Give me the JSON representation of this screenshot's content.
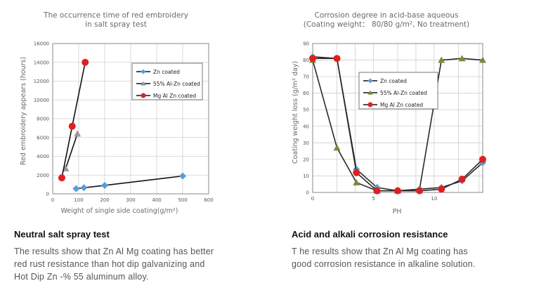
{
  "chart_data": [
    {
      "type": "line",
      "title_lines": [
        "The occurrence time of red embroidery",
        "in salt spray test"
      ],
      "xlabel": "Weight of single side coating(g/m²)",
      "ylabel": "Red embroidery appears (hours)",
      "xlim": [
        0,
        600
      ],
      "ylim": [
        0,
        16000
      ],
      "x_ticks": [
        "0",
        "100",
        "200",
        "300",
        "400",
        "500",
        "600"
      ],
      "y_ticks": [
        "0",
        "2000",
        "4000",
        "6000",
        "8000",
        "10000",
        "12000",
        "14000",
        "16000"
      ],
      "grid": true,
      "legend_position": "top-right",
      "series": [
        {
          "name": "Zn coated",
          "color": "#5b9bd5",
          "marker": "diamond",
          "x": [
            90,
            120,
            200,
            500
          ],
          "y": [
            550,
            650,
            900,
            1900
          ]
        },
        {
          "name": "55% Al-Zn coated",
          "color": "#999999",
          "marker": "triangle",
          "x": [
            50,
            95
          ],
          "y": [
            2700,
            6400
          ]
        },
        {
          "name": "Mg Al Zn coated",
          "color": "#e02020",
          "marker": "circle",
          "x": [
            35,
            75,
            125
          ],
          "y": [
            1700,
            7200,
            14000
          ]
        }
      ]
    },
    {
      "type": "line",
      "title_lines": [
        "Corrosion degree in acid-base aqueous",
        "(Coating weight： 80/80 g/m²,  No treatment)"
      ],
      "xlabel": "PH",
      "ylabel": "Coating weight loss (g/m² day)",
      "xlim": [
        0,
        14
      ],
      "ylim": [
        0,
        90
      ],
      "x_ticks": [
        "0",
        "5",
        "10"
      ],
      "y_ticks": [
        "0",
        "10",
        "20",
        "30",
        "40",
        "50",
        "60",
        "70",
        "80",
        "90"
      ],
      "grid": true,
      "legend_position": "top-left",
      "series": [
        {
          "name": "Zn coated",
          "color": "#5b9bd5",
          "marker": "diamond",
          "x": [
            0,
            2,
            3.6,
            5.3,
            7,
            8.8,
            10.6,
            12.3,
            14
          ],
          "y": [
            82,
            81,
            14,
            3,
            1,
            2,
            3,
            7,
            18
          ]
        },
        {
          "name": "55% Al-Zn coated",
          "color": "#7a8a3a",
          "marker": "triangle",
          "x": [
            0,
            2,
            3.6,
            5.3,
            7,
            8.8,
            10.6,
            12.3,
            14
          ],
          "y": [
            80,
            27,
            6,
            1,
            1,
            2,
            80,
            81,
            80
          ]
        },
        {
          "name": "Mg Al Zn coated",
          "color": "#e02020",
          "marker": "circle",
          "x": [
            0,
            2,
            3.6,
            5.3,
            7,
            8.8,
            10.6,
            12.3,
            14
          ],
          "y": [
            81,
            81,
            12,
            1,
            1,
            1,
            2,
            8,
            20
          ]
        }
      ]
    }
  ],
  "captions": {
    "left_heading": "Neutral salt spray test",
    "left_lines": [
      "The results show that Zn Al Mg coating has better",
      "red rust resistance than hot dip galvanizing and",
      "Hot Dip Zn -% 55 aluminum alloy."
    ],
    "right_heading": "Acid and alkali corrosion resistance",
    "right_lines": [
      "T he results show that Zn Al Mg coating has",
      "good corrosion resistance in alkaline solution."
    ]
  }
}
